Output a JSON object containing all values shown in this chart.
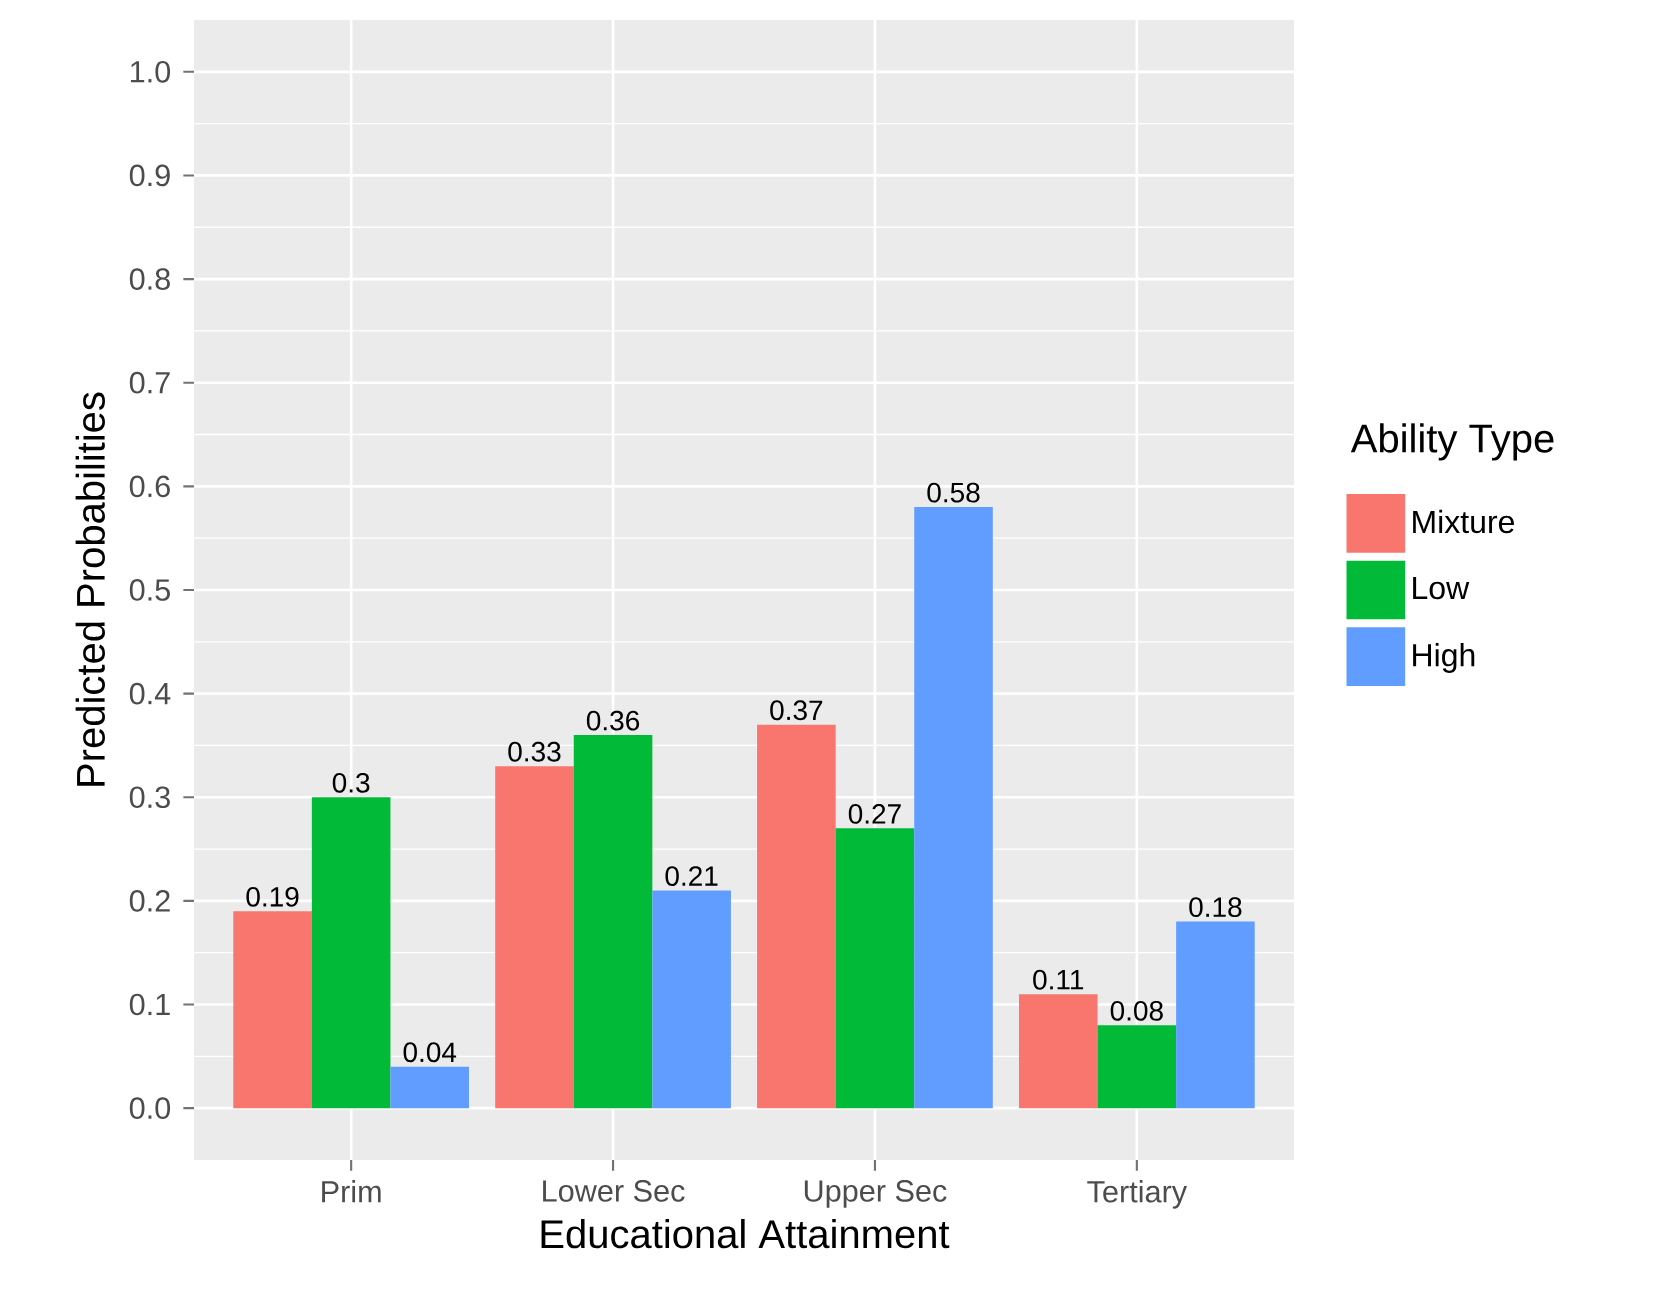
{
  "chart_data": {
    "type": "bar",
    "xlabel": "Educational Attainment",
    "ylabel": "Predicted Probabilities",
    "legend_title": "Ability Type",
    "categories": [
      "Prim",
      "Lower Sec",
      "Upper Sec",
      "Tertiary"
    ],
    "series": [
      {
        "name": "Mixture",
        "color": "#f8766d",
        "values": [
          0.19,
          0.33,
          0.37,
          0.11
        ]
      },
      {
        "name": "Low",
        "color": "#00ba38",
        "values": [
          0.3,
          0.36,
          0.27,
          0.08
        ]
      },
      {
        "name": "High",
        "color": "#619cff",
        "values": [
          0.04,
          0.21,
          0.58,
          0.18
        ]
      }
    ],
    "ylim": [
      -0.05,
      1.05
    ],
    "yticks": [
      {
        "value": 0,
        "label": "0.0"
      },
      0.1,
      0.2,
      0.3,
      0.4,
      0.5,
      0.6,
      0.7,
      0.8,
      0.9,
      {
        "value": 1,
        "label": "1.0"
      }
    ],
    "data_labels": true,
    "grid": true,
    "legend": "right"
  }
}
